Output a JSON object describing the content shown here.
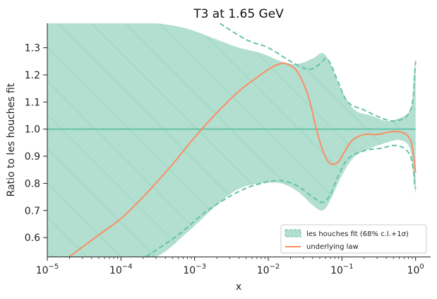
{
  "chart_data": {
    "type": "area",
    "title": "T3 at 1.65 GeV",
    "xlabel": "x",
    "ylabel": "Ratio to les houches fit",
    "x_scale": "log",
    "xlim": [
      1e-05,
      1.6
    ],
    "ylim": [
      0.53,
      1.39
    ],
    "x_ticks": [
      {
        "value": 1e-05,
        "exp": "−5"
      },
      {
        "value": 0.0001,
        "exp": "−4"
      },
      {
        "value": 0.001,
        "exp": "−3"
      },
      {
        "value": 0.01,
        "exp": "−2"
      },
      {
        "value": 0.1,
        "exp": "−1"
      },
      {
        "value": 1,
        "exp": "0"
      }
    ],
    "tick_base": "10",
    "y_ticks": [
      "0.6",
      "0.7",
      "0.8",
      "0.9",
      "1.0",
      "1.1",
      "1.2",
      "1.3"
    ],
    "grid": false,
    "legend_position": "lower-right",
    "colors": {
      "fit": "#66c2a5",
      "band_fill": "#b2dfd0",
      "law": "#fc8d62"
    },
    "series": [
      {
        "name": "les houches fit (68% c.l.+1σ)",
        "kind": "band",
        "x": [
          1e-05,
          0.0001,
          0.0003,
          0.0008,
          0.002,
          0.004,
          0.008,
          0.015,
          0.025,
          0.04,
          0.055,
          0.07,
          0.1,
          0.15,
          0.25,
          0.4,
          0.6,
          0.8,
          0.9,
          0.95,
          1.0
        ],
        "upper": [
          1.39,
          1.39,
          1.39,
          1.37,
          1.33,
          1.3,
          1.28,
          1.25,
          1.24,
          1.26,
          1.28,
          1.24,
          1.14,
          1.07,
          1.05,
          1.03,
          1.04,
          1.06,
          1.1,
          1.2,
          1.26
        ],
        "lower": [
          0.53,
          0.53,
          0.53,
          0.62,
          0.72,
          0.78,
          0.8,
          0.8,
          0.77,
          0.72,
          0.7,
          0.74,
          0.83,
          0.9,
          0.93,
          0.95,
          0.96,
          0.94,
          0.88,
          0.8,
          0.76
        ],
        "central": [
          1.0,
          1.0,
          1.0,
          1.0,
          1.0,
          1.0,
          1.0,
          1.0,
          1.0,
          1.0,
          1.0,
          1.0,
          1.0,
          1.0,
          1.0,
          1.0,
          1.0,
          1.0,
          1.0,
          1.0,
          1.0
        ],
        "dashed_upper_x": [
          0.0022,
          0.005,
          0.01,
          0.02,
          0.035,
          0.05,
          0.06,
          0.07,
          0.09,
          0.12,
          0.2,
          0.35,
          0.5,
          0.7,
          0.85,
          0.93,
          0.97,
          1.0
        ],
        "dashed_upper_y": [
          1.39,
          1.33,
          1.3,
          1.25,
          1.22,
          1.24,
          1.26,
          1.24,
          1.17,
          1.1,
          1.07,
          1.04,
          1.03,
          1.04,
          1.07,
          1.12,
          1.2,
          1.25
        ],
        "dashed_lower_x": [
          0.00022,
          0.0006,
          0.0015,
          0.004,
          0.008,
          0.015,
          0.025,
          0.04,
          0.055,
          0.07,
          0.09,
          0.12,
          0.2,
          0.35,
          0.5,
          0.7,
          0.85,
          0.93,
          0.97,
          1.0
        ],
        "dashed_lower_y": [
          0.53,
          0.61,
          0.7,
          0.77,
          0.8,
          0.81,
          0.79,
          0.75,
          0.73,
          0.76,
          0.83,
          0.89,
          0.92,
          0.93,
          0.94,
          0.93,
          0.9,
          0.85,
          0.8,
          0.78
        ]
      },
      {
        "name": "underlying law",
        "kind": "line",
        "x": [
          2e-05,
          5e-05,
          0.0001,
          0.0002,
          0.0005,
          0.001,
          0.002,
          0.004,
          0.007,
          0.01,
          0.014,
          0.018,
          0.025,
          0.035,
          0.045,
          0.055,
          0.065,
          0.075,
          0.09,
          0.11,
          0.14,
          0.2,
          0.3,
          0.45,
          0.6,
          0.75,
          0.85,
          0.92,
          0.96,
          1.0
        ],
        "values": [
          0.53,
          0.61,
          0.67,
          0.75,
          0.87,
          0.97,
          1.06,
          1.14,
          1.19,
          1.22,
          1.24,
          1.24,
          1.21,
          1.12,
          1.0,
          0.92,
          0.88,
          0.87,
          0.88,
          0.92,
          0.96,
          0.98,
          0.98,
          0.99,
          0.99,
          0.98,
          0.96,
          0.92,
          0.88,
          0.84
        ]
      }
    ]
  }
}
